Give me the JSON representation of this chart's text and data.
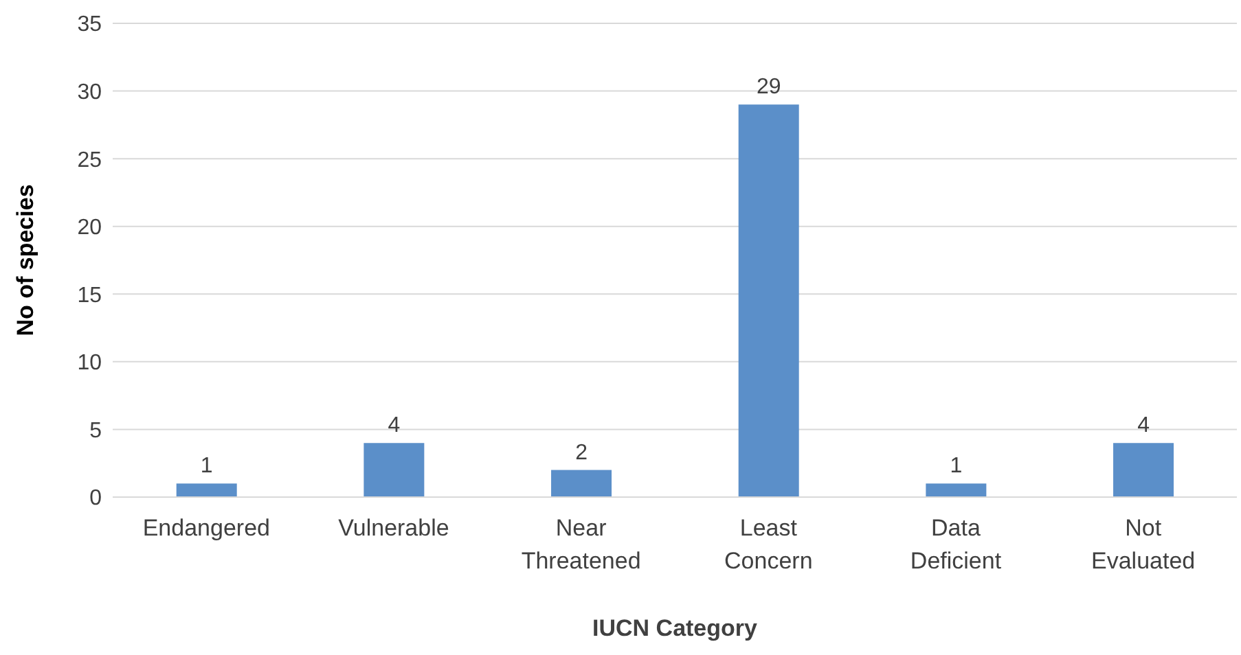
{
  "chart_data": {
    "type": "bar",
    "xlabel": "IUCN Category",
    "ylabel": "No of species",
    "categories": [
      "Endangered",
      "Vulnerable",
      "Near Threatened",
      "Least Concern",
      "Data Deficient",
      "Not Evaluated"
    ],
    "values": [
      1,
      4,
      2,
      29,
      1,
      4
    ],
    "color": "#5b8fc9",
    "ylim": [
      0,
      35
    ],
    "yticks": [
      0,
      5,
      10,
      15,
      20,
      25,
      30,
      35
    ],
    "grid": "y",
    "data_labels": true
  }
}
